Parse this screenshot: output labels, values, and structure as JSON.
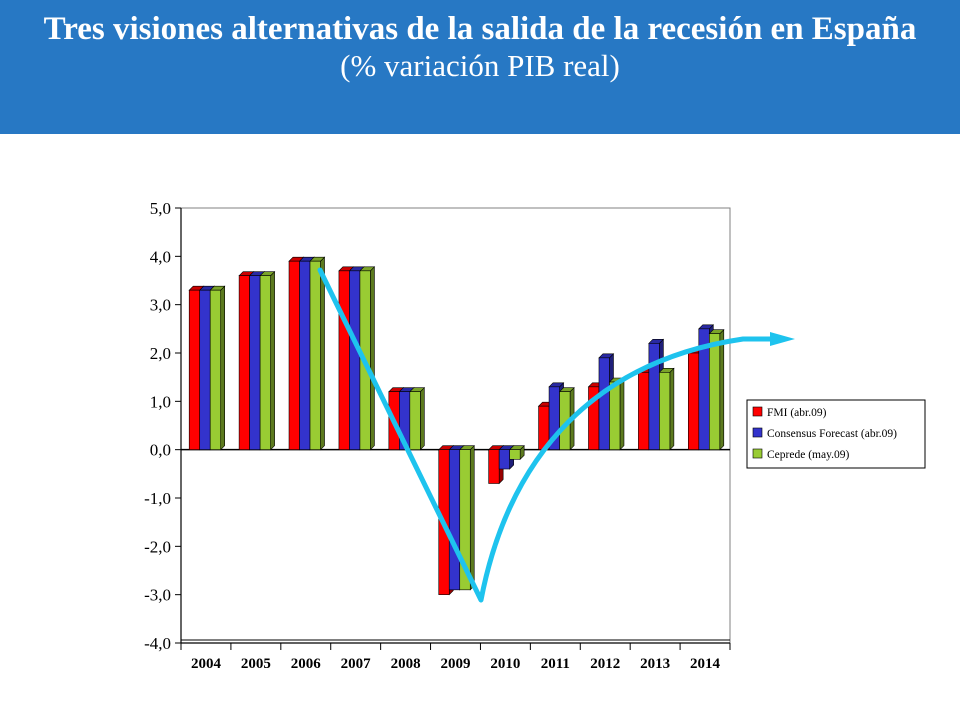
{
  "header": {
    "title": "Tres visiones alternativas de la salida de la recesión en España",
    "subtitle": "(% variación PIB real)"
  },
  "colors": {
    "header_bg": "#2778c4",
    "arrow": "#1ec3ee"
  },
  "chart_data": {
    "type": "bar",
    "title": "Tres visiones alternativas de la salida de la recesión en España",
    "subtitle": "(% variación PIB real)",
    "xlabel": "",
    "ylabel": "",
    "categories": [
      "2004",
      "2005",
      "2006",
      "2007",
      "2008",
      "2009",
      "2010",
      "2011",
      "2012",
      "2013",
      "2014"
    ],
    "yticks": [
      "5,0",
      "4,0",
      "3,0",
      "2,0",
      "1,0",
      "0,0",
      "-1,0",
      "-2,0",
      "-3,0",
      "-4,0"
    ],
    "ylim": [
      -4,
      5
    ],
    "grid": false,
    "legend_position": "right",
    "series": [
      {
        "name": "FMI (abr.09)",
        "color": "#ff0000",
        "values": [
          3.3,
          3.6,
          3.9,
          3.7,
          1.2,
          -3.0,
          -0.7,
          0.9,
          1.3,
          1.6,
          2.0
        ]
      },
      {
        "name": "Consensus Forecast  (abr.09)",
        "color": "#3333cc",
        "values": [
          3.3,
          3.6,
          3.9,
          3.7,
          1.2,
          -2.9,
          -0.4,
          1.3,
          1.9,
          2.2,
          2.5
        ]
      },
      {
        "name": "Ceprede (may.09)",
        "color": "#99cc33",
        "values": [
          3.3,
          3.6,
          3.9,
          3.7,
          1.2,
          -2.9,
          -0.2,
          1.2,
          1.4,
          1.6,
          2.4
        ]
      }
    ]
  }
}
